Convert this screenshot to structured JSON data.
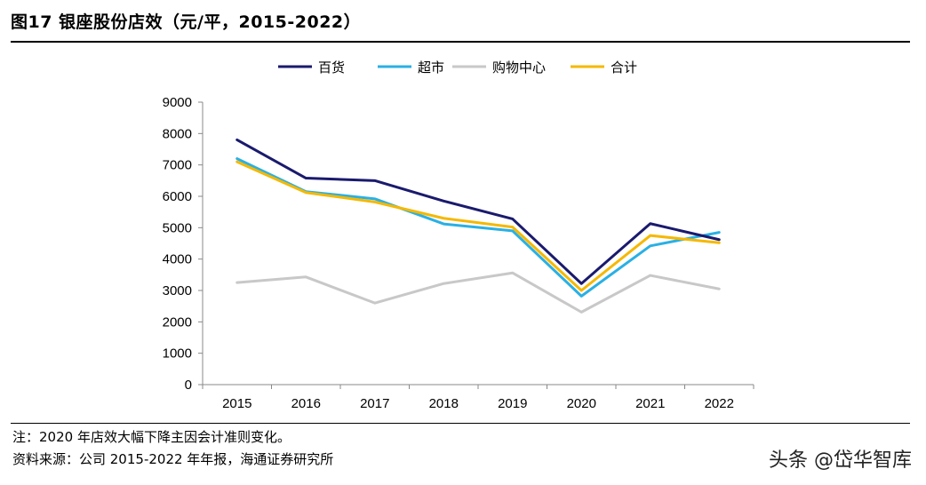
{
  "header": {
    "title": "图17 银座股份店效（元/平，2015-2022）"
  },
  "chart_data": {
    "type": "line",
    "title": "图17 银座股份店效（元/平，2015-2022）",
    "categories": [
      "2015",
      "2016",
      "2017",
      "2018",
      "2019",
      "2020",
      "2021",
      "2022"
    ],
    "series": [
      {
        "name": "百货",
        "color": "#1a1a6e",
        "values": [
          7800,
          6580,
          6500,
          5850,
          5280,
          3220,
          5130,
          4620
        ]
      },
      {
        "name": "超市",
        "color": "#2ab0e4",
        "values": [
          7200,
          6150,
          5920,
          5120,
          4900,
          2820,
          4420,
          4850
        ]
      },
      {
        "name": "购物中心",
        "color": "#c8c8c8",
        "values": [
          3250,
          3430,
          2600,
          3220,
          3560,
          2310,
          3480,
          3050
        ]
      },
      {
        "name": "合计",
        "color": "#f5b800",
        "values": [
          7100,
          6120,
          5820,
          5300,
          5020,
          3000,
          4750,
          4520
        ]
      }
    ],
    "yticks": [
      "0",
      "1000",
      "2000",
      "3000",
      "4000",
      "5000",
      "6000",
      "7000",
      "8000",
      "9000"
    ],
    "ylim": [
      0,
      9000
    ],
    "xlabel": "",
    "ylabel": "",
    "legend": "top-center",
    "grid": false
  },
  "footer": {
    "note": "注：2020 年店效大幅下降主因会计准则变化。",
    "source": "资料来源：公司 2015-2022 年年报，海通证券研究所",
    "watermark": "头条 @岱华智库"
  }
}
